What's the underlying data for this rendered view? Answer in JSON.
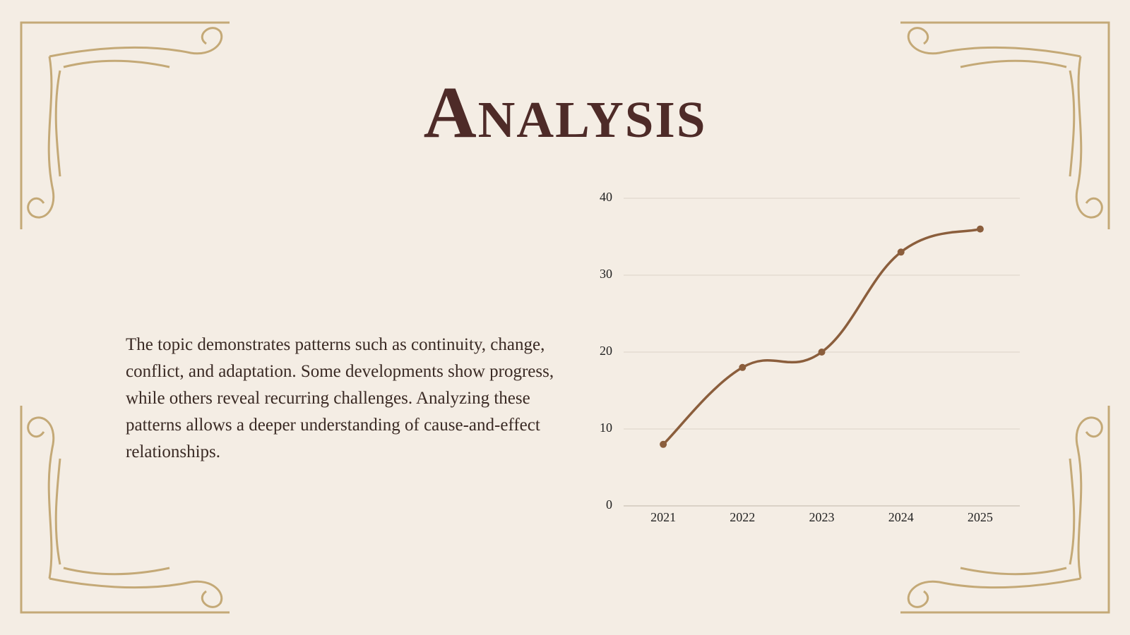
{
  "title": "Analysis",
  "body": "The topic demonstrates patterns such as continuity, change, conflict, and adaptation. Some developments show progress, while others reveal recurring challenges. Analyzing these patterns allows a deeper understanding of cause-and-effect relationships.",
  "chart_data": {
    "type": "line",
    "categories": [
      "2021",
      "2022",
      "2023",
      "2024",
      "2025"
    ],
    "values": [
      8,
      18,
      20,
      33,
      36
    ],
    "color": "#8b5e3c",
    "ylim": [
      0,
      40
    ],
    "yticks": [
      0,
      10,
      20,
      30,
      40
    ],
    "grid": true
  }
}
